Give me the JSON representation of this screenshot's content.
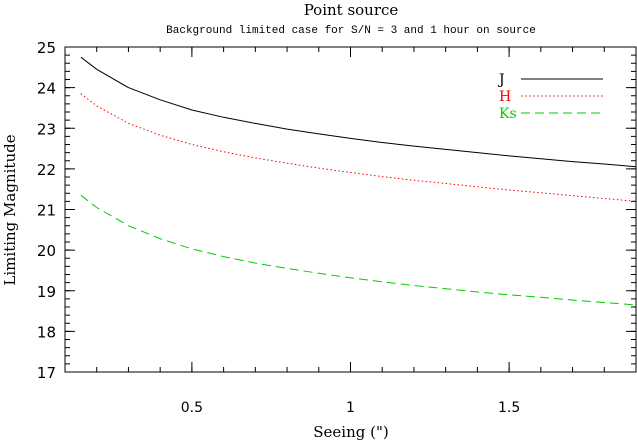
{
  "chart_data": {
    "type": "line",
    "title": "Point source",
    "subtitle": "Background limited case for S/N = 3 and 1 hour on source",
    "xlabel": "Seeing (\")",
    "ylabel": "Limiting Magnitude",
    "xlim": [
      0.1,
      1.9
    ],
    "ylim": [
      17,
      25
    ],
    "xticks": [
      0.5,
      1,
      1.5
    ],
    "xtick_labels": [
      "0.5",
      "1",
      "1.5"
    ],
    "yticks": [
      17,
      18,
      19,
      20,
      21,
      22,
      23,
      24,
      25
    ],
    "ytick_labels": [
      "17",
      "18",
      "19",
      "20",
      "21",
      "22",
      "23",
      "24",
      "25"
    ],
    "grid": false,
    "legend_position": "top-right",
    "series": [
      {
        "name": "J",
        "color": "#000000",
        "dash": "solid",
        "x": [
          0.15,
          0.2,
          0.3,
          0.4,
          0.5,
          0.6,
          0.7,
          0.8,
          0.9,
          1.0,
          1.1,
          1.2,
          1.3,
          1.4,
          1.5,
          1.6,
          1.7,
          1.8,
          1.9
        ],
        "y": [
          24.75,
          24.45,
          24.0,
          23.7,
          23.45,
          23.27,
          23.12,
          22.98,
          22.86,
          22.75,
          22.65,
          22.56,
          22.48,
          22.4,
          22.32,
          22.25,
          22.18,
          22.12,
          22.05
        ]
      },
      {
        "name": "H",
        "color": "#ff0000",
        "dash": "dotted",
        "x": [
          0.15,
          0.2,
          0.3,
          0.4,
          0.5,
          0.6,
          0.7,
          0.8,
          0.9,
          1.0,
          1.1,
          1.2,
          1.3,
          1.4,
          1.5,
          1.6,
          1.7,
          1.8,
          1.9
        ],
        "y": [
          23.85,
          23.55,
          23.12,
          22.83,
          22.6,
          22.42,
          22.27,
          22.14,
          22.02,
          21.91,
          21.81,
          21.72,
          21.64,
          21.56,
          21.48,
          21.41,
          21.34,
          21.27,
          21.2
        ]
      },
      {
        "name": "Ks",
        "color": "#00cc00",
        "dash": "dashed",
        "x": [
          0.15,
          0.2,
          0.3,
          0.4,
          0.5,
          0.6,
          0.7,
          0.8,
          0.9,
          1.0,
          1.1,
          1.2,
          1.3,
          1.4,
          1.5,
          1.6,
          1.7,
          1.8,
          1.9
        ],
        "y": [
          21.35,
          21.05,
          20.6,
          20.28,
          20.03,
          19.84,
          19.68,
          19.55,
          19.43,
          19.32,
          19.22,
          19.13,
          19.05,
          18.97,
          18.9,
          18.84,
          18.77,
          18.71,
          18.65
        ]
      }
    ]
  }
}
